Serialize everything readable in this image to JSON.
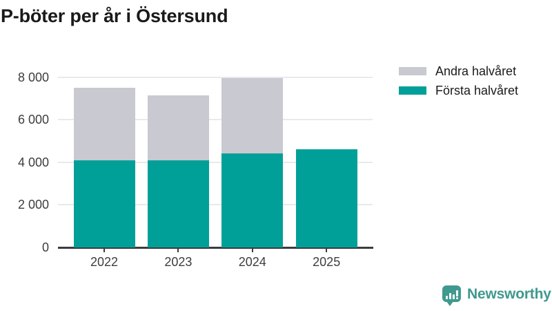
{
  "title": "P-böter per år i Östersund",
  "chart_data": {
    "type": "bar",
    "stacked": true,
    "title": "P-böter per år i Östersund",
    "categories": [
      "2022",
      "2023",
      "2024",
      "2025"
    ],
    "series": [
      {
        "name": "Första halvåret",
        "color": "#00a099",
        "values": [
          4100,
          4100,
          4400,
          4600
        ]
      },
      {
        "name": "Andra halvåret",
        "color": "#c9c9d1",
        "values": [
          3400,
          3050,
          3550,
          null
        ]
      }
    ],
    "xlabel": "",
    "ylabel": "",
    "ylim": [
      0,
      8000
    ],
    "yticks": [
      {
        "value": 0,
        "label": "0"
      },
      {
        "value": 2000,
        "label": "2 000"
      },
      {
        "value": 4000,
        "label": "4 000"
      },
      {
        "value": 6000,
        "label": "6 000"
      },
      {
        "value": 8000,
        "label": "8 000"
      }
    ],
    "grid": true,
    "legend_position": "top-right"
  },
  "legend": {
    "items": [
      {
        "label": "Andra halvåret",
        "color": "#c9c9d1"
      },
      {
        "label": "Första halvåret",
        "color": "#00a099"
      }
    ]
  },
  "branding": {
    "logo_text": "Newsworthy",
    "color": "#3f998e"
  },
  "colors": {
    "first_half": "#00a099",
    "second_half": "#c9c9d1",
    "gridline": "#e9e9e9",
    "axis": "#3c3c3c",
    "text": "#1a1a1a"
  }
}
